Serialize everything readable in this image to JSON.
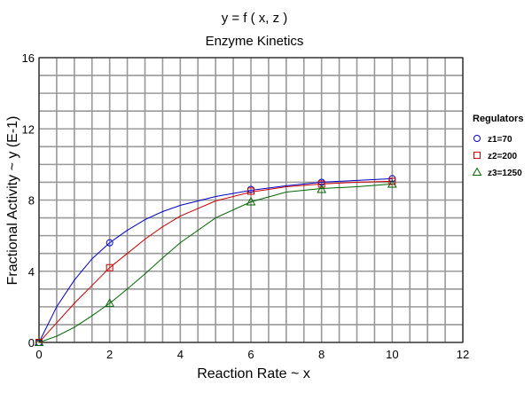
{
  "chart_data": {
    "type": "scatter",
    "title": "y = f ( x, z )",
    "subtitle": "Enzyme Kinetics",
    "xlabel": "Reaction Rate  ~ x",
    "ylabel": "Fractional Activity  ~ y (E-1)",
    "xlim": [
      0,
      12
    ],
    "ylim": [
      0,
      16
    ],
    "x_ticks": [
      "0",
      "2",
      "4",
      "6",
      "8",
      "10",
      "12"
    ],
    "y_ticks": [
      "0",
      "4",
      "8",
      "12",
      "16"
    ],
    "grid": true,
    "legend": {
      "title": "Regulators",
      "position": "right"
    },
    "series": [
      {
        "name": "z1=70",
        "color": "#0000cc",
        "marker": "circle",
        "points": [
          [
            0,
            0
          ],
          [
            2,
            5.6
          ],
          [
            6,
            8.6
          ],
          [
            8,
            9.0
          ],
          [
            10,
            9.2
          ]
        ],
        "curve": [
          [
            0,
            0
          ],
          [
            0.5,
            2.0
          ],
          [
            1,
            3.5
          ],
          [
            1.5,
            4.7
          ],
          [
            2,
            5.6
          ],
          [
            2.5,
            6.3
          ],
          [
            3,
            6.9
          ],
          [
            3.5,
            7.35
          ],
          [
            4,
            7.7
          ],
          [
            5,
            8.2
          ],
          [
            6,
            8.55
          ],
          [
            7,
            8.8
          ],
          [
            8,
            9.0
          ],
          [
            9,
            9.1
          ],
          [
            10,
            9.2
          ]
        ]
      },
      {
        "name": "z2=200",
        "color": "#cc0000",
        "marker": "square",
        "points": [
          [
            0,
            0
          ],
          [
            2,
            4.2
          ],
          [
            6,
            8.5
          ],
          [
            8,
            8.9
          ],
          [
            10,
            9.05
          ]
        ],
        "curve": [
          [
            0,
            0
          ],
          [
            0.5,
            1.1
          ],
          [
            1,
            2.2
          ],
          [
            1.5,
            3.2
          ],
          [
            2,
            4.2
          ],
          [
            2.5,
            5.0
          ],
          [
            3,
            5.8
          ],
          [
            3.5,
            6.5
          ],
          [
            4,
            7.1
          ],
          [
            5,
            7.95
          ],
          [
            6,
            8.45
          ],
          [
            7,
            8.75
          ],
          [
            8,
            8.9
          ],
          [
            9,
            9.0
          ],
          [
            10,
            9.05
          ]
        ]
      },
      {
        "name": "z3=1250",
        "color": "#006600",
        "marker": "triangle",
        "points": [
          [
            0,
            0
          ],
          [
            2,
            2.2
          ],
          [
            6,
            7.9
          ],
          [
            8,
            8.6
          ],
          [
            10,
            8.9
          ]
        ],
        "curve": [
          [
            0,
            0
          ],
          [
            0.5,
            0.35
          ],
          [
            1,
            0.85
          ],
          [
            1.5,
            1.5
          ],
          [
            2,
            2.2
          ],
          [
            2.5,
            3.0
          ],
          [
            3,
            3.85
          ],
          [
            3.5,
            4.75
          ],
          [
            4,
            5.6
          ],
          [
            5,
            7.0
          ],
          [
            6,
            7.9
          ],
          [
            7,
            8.45
          ],
          [
            8,
            8.65
          ],
          [
            9,
            8.75
          ],
          [
            10,
            8.9
          ]
        ]
      }
    ]
  }
}
